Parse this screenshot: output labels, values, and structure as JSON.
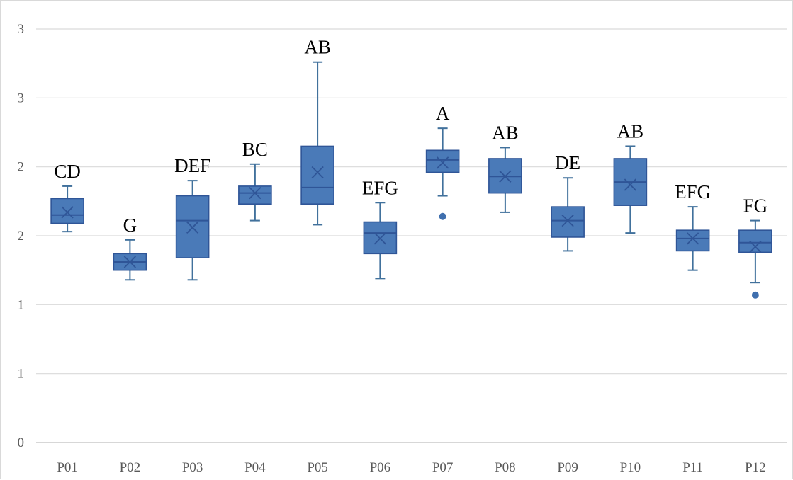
{
  "chart_data": {
    "type": "box",
    "title": "",
    "xlabel": "",
    "ylabel": "",
    "ylim": [
      0,
      3
    ],
    "yticks": [
      0,
      0.5,
      1,
      1.5,
      2,
      2.5,
      3
    ],
    "ytick_labels": [
      "0",
      "1",
      "1",
      "2",
      "2",
      "3",
      "3"
    ],
    "grid": true,
    "legend": "none",
    "colors": {
      "box": "#4a7ab8",
      "edge": "#2f5597",
      "grid": "#d9d9d9",
      "text": "#595959"
    },
    "categories": [
      "P01",
      "P02",
      "P03",
      "P04",
      "P05",
      "P06",
      "P07",
      "P08",
      "P09",
      "P10",
      "P11",
      "P12"
    ],
    "boxes": [
      {
        "label": "P01",
        "min": 1.53,
        "q1": 1.59,
        "median": 1.65,
        "q3": 1.77,
        "max": 1.86,
        "mean": 1.67,
        "outliers": [],
        "group": "CD"
      },
      {
        "label": "P02",
        "min": 1.18,
        "q1": 1.25,
        "median": 1.31,
        "q3": 1.37,
        "max": 1.47,
        "mean": 1.31,
        "outliers": [],
        "group": "G"
      },
      {
        "label": "P03",
        "min": 1.18,
        "q1": 1.34,
        "median": 1.61,
        "q3": 1.79,
        "max": 1.9,
        "mean": 1.56,
        "outliers": [],
        "group": "DEF"
      },
      {
        "label": "P04",
        "min": 1.61,
        "q1": 1.73,
        "median": 1.81,
        "q3": 1.86,
        "max": 2.02,
        "mean": 1.81,
        "outliers": [],
        "group": "BC"
      },
      {
        "label": "P05",
        "min": 1.58,
        "q1": 1.73,
        "median": 1.85,
        "q3": 2.15,
        "max": 2.76,
        "mean": 1.96,
        "outliers": [],
        "group": "AB"
      },
      {
        "label": "P06",
        "min": 1.19,
        "q1": 1.37,
        "median": 1.52,
        "q3": 1.6,
        "max": 1.74,
        "mean": 1.48,
        "outliers": [],
        "group": "EFG"
      },
      {
        "label": "P07",
        "min": 1.79,
        "q1": 1.96,
        "median": 2.05,
        "q3": 2.12,
        "max": 2.28,
        "mean": 2.03,
        "outliers": [
          1.64
        ],
        "group": "A"
      },
      {
        "label": "P08",
        "min": 1.67,
        "q1": 1.81,
        "median": 1.93,
        "q3": 2.06,
        "max": 2.14,
        "mean": 1.93,
        "outliers": [],
        "group": "AB"
      },
      {
        "label": "P09",
        "min": 1.39,
        "q1": 1.49,
        "median": 1.61,
        "q3": 1.71,
        "max": 1.92,
        "mean": 1.61,
        "outliers": [],
        "group": "DE"
      },
      {
        "label": "P10",
        "min": 1.52,
        "q1": 1.72,
        "median": 1.89,
        "q3": 2.06,
        "max": 2.15,
        "mean": 1.87,
        "outliers": [],
        "group": "AB"
      },
      {
        "label": "P11",
        "min": 1.25,
        "q1": 1.39,
        "median": 1.48,
        "q3": 1.54,
        "max": 1.71,
        "mean": 1.48,
        "outliers": [],
        "group": "EFG"
      },
      {
        "label": "P12",
        "min": 1.16,
        "q1": 1.38,
        "median": 1.45,
        "q3": 1.54,
        "max": 1.61,
        "mean": 1.42,
        "outliers": [
          1.07
        ],
        "group": "FG"
      }
    ]
  }
}
